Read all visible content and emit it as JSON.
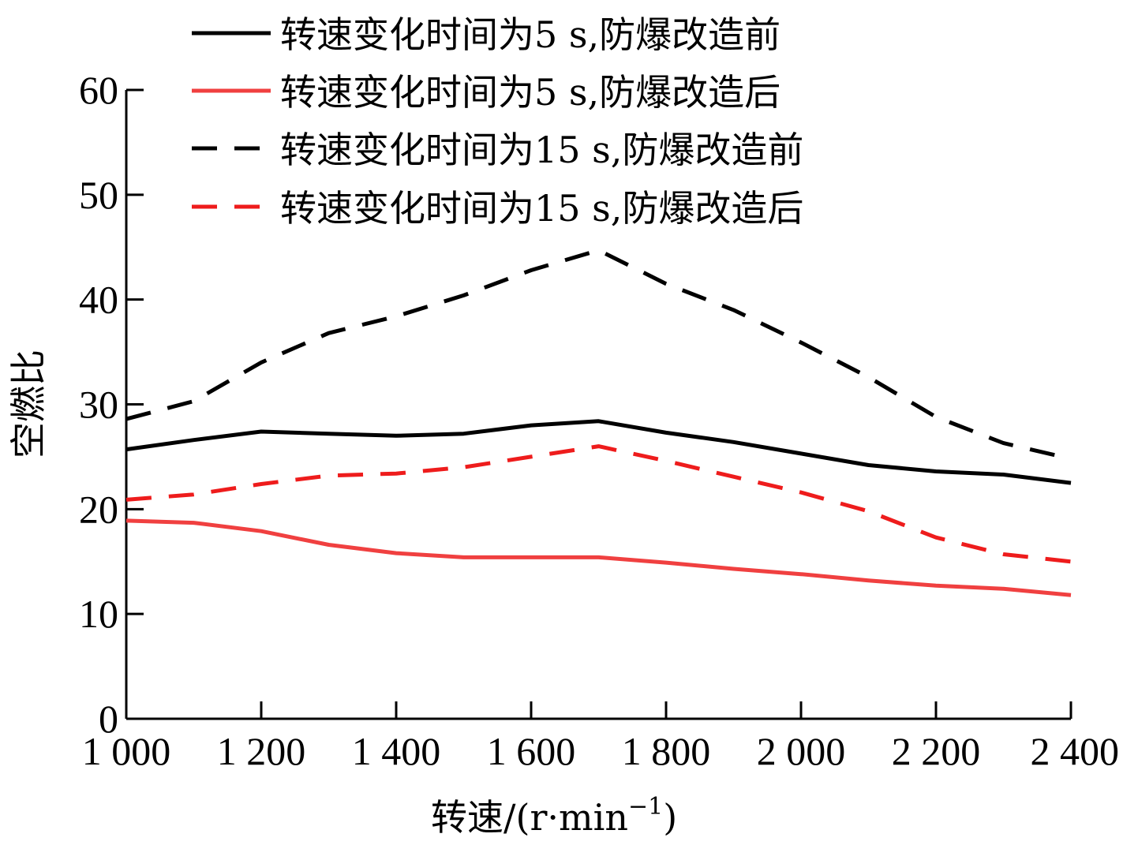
{
  "chart_data": {
    "type": "line",
    "title": "",
    "xlabel": "转速/(r·min",
    "xlabel_sup": "−1",
    "xlabel_close": ")",
    "ylabel": "空燃比",
    "xlim": [
      1000,
      2400
    ],
    "ylim": [
      0,
      60
    ],
    "x_ticks": [
      1000,
      1200,
      1400,
      1600,
      1800,
      2000,
      2200,
      2400
    ],
    "x_tick_labels": [
      "1 000",
      "1 200",
      "1 400",
      "1 600",
      "1 800",
      "2 000",
      "2 200",
      "2 400"
    ],
    "y_ticks": [
      0,
      10,
      20,
      30,
      40,
      50,
      60
    ],
    "y_tick_labels": [
      "0",
      "10",
      "20",
      "30",
      "40",
      "50",
      "60"
    ],
    "x": [
      1000,
      1100,
      1200,
      1300,
      1400,
      1500,
      1600,
      1700,
      1800,
      1900,
      2000,
      2100,
      2200,
      2300,
      2400
    ],
    "series": [
      {
        "name": "转速变化时间为5 s,防爆改造前",
        "color": "#000000",
        "style": "solid",
        "values": [
          25.7,
          26.6,
          27.4,
          27.2,
          27.0,
          27.2,
          28.0,
          28.4,
          27.3,
          26.4,
          25.3,
          24.2,
          23.6,
          23.3,
          22.5
        ]
      },
      {
        "name": "转速变化时间为5 s,防爆改造后",
        "color": "#f04040",
        "style": "solid",
        "values": [
          18.9,
          18.7,
          17.9,
          16.6,
          15.8,
          15.4,
          15.4,
          15.4,
          14.9,
          14.3,
          13.8,
          13.2,
          12.7,
          12.4,
          11.8
        ]
      },
      {
        "name": "转速变化时间为15 s,防爆改造前",
        "color": "#000000",
        "style": "dashed",
        "values": [
          28.6,
          30.3,
          34.0,
          36.8,
          38.4,
          40.4,
          42.8,
          44.7,
          41.5,
          39.0,
          35.9,
          32.6,
          28.8,
          26.3,
          24.8
        ]
      },
      {
        "name": "转速变化时间为15 s,防爆改造后",
        "color": "#ee1c1c",
        "style": "dashed",
        "values": [
          20.9,
          21.4,
          22.4,
          23.2,
          23.4,
          24.0,
          25.0,
          26.0,
          24.6,
          23.1,
          21.6,
          19.8,
          17.3,
          15.7,
          15.0
        ]
      }
    ]
  }
}
